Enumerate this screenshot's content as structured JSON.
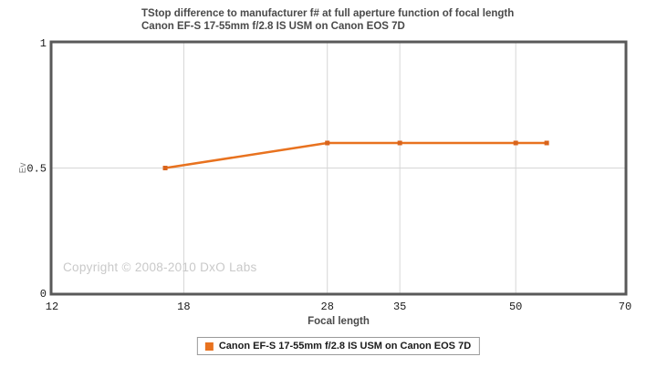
{
  "header": {
    "title_line1": "TStop difference to manufacturer f# at full aperture function of focal length",
    "title_line2": "Canon EF-S 17-55mm f/2.8 IS USM on Canon EOS 7D"
  },
  "watermark": "Copyright © 2008-2010 DxO Labs",
  "legend": {
    "label": "Canon EF-S 17-55mm f/2.8 IS USM on Canon EOS 7D",
    "swatch_color": "#e8721f"
  },
  "colors": {
    "series_line": "#e8721f",
    "series_marker": "#d9641c",
    "grid_line": "#d6d6d6",
    "plot_border": "#595959",
    "tick_label": "#1a1a1a",
    "axis_label": "#4a4a4a",
    "y_axis_title": "#808080"
  },
  "chart_data": {
    "type": "line",
    "title": "TStop difference to manufacturer f# at full aperture function of focal length",
    "subtitle": "Canon EF-S 17-55mm f/2.8 IS USM on Canon EOS 7D",
    "xlabel": "Focal length",
    "ylabel": "Ev",
    "x_scale": "log",
    "xlim": [
      12,
      70
    ],
    "ylim": [
      0,
      1
    ],
    "xticks": [
      12,
      18,
      28,
      35,
      50,
      70
    ],
    "yticks": [
      0,
      0.5,
      1
    ],
    "x_gridlines": [
      18,
      28,
      35,
      50
    ],
    "y_gridlines": [
      0.5
    ],
    "grid": true,
    "legend_position": "bottom",
    "series": [
      {
        "name": "Canon EF-S 17-55mm f/2.8 IS USM on Canon EOS 7D",
        "color": "#e8721f",
        "x": [
          17,
          28,
          35,
          50,
          55
        ],
        "y": [
          0.5,
          0.6,
          0.6,
          0.6,
          0.6
        ]
      }
    ]
  }
}
